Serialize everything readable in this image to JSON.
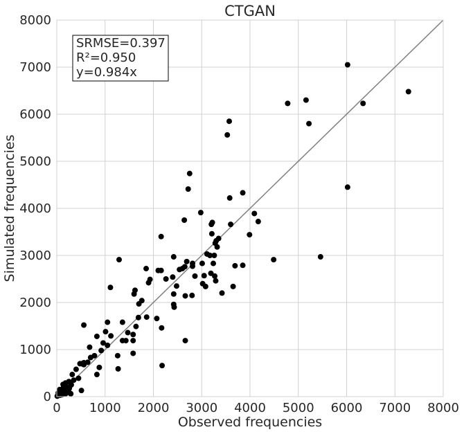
{
  "chart_data": {
    "type": "scatter",
    "title": "CTGAN",
    "xlabel": "Observed frequencies",
    "ylabel": "Simulated frequencies",
    "xlim": [
      0,
      8000
    ],
    "ylim": [
      0,
      8000
    ],
    "xticks": [
      "0",
      "1000",
      "2000",
      "3000",
      "4000",
      "5000",
      "6000",
      "7000",
      "8000"
    ],
    "yticks": [
      "0",
      "1000",
      "2000",
      "3000",
      "4000",
      "5000",
      "6000",
      "7000",
      "8000"
    ],
    "grid": true,
    "reference_line": {
      "slope": 1.0
    },
    "annotation": {
      "lines": [
        "SRMSE=0.397",
        "R²=0.950",
        "y=0.984x"
      ],
      "placement": "top-left"
    },
    "point_color": "#000000",
    "line_color": "#808080",
    "grid_color": "#d0d0d0",
    "points": [
      [
        6020,
        7050
      ],
      [
        7280,
        6480
      ],
      [
        4780,
        6230
      ],
      [
        5160,
        6300
      ],
      [
        5220,
        5800
      ],
      [
        6340,
        6230
      ],
      [
        3570,
        5850
      ],
      [
        3530,
        5560
      ],
      [
        6020,
        4450
      ],
      [
        5460,
        2970
      ],
      [
        4490,
        2910
      ],
      [
        2750,
        4740
      ],
      [
        2720,
        4410
      ],
      [
        3580,
        4220
      ],
      [
        3850,
        4330
      ],
      [
        4090,
        3890
      ],
      [
        4170,
        3720
      ],
      [
        2980,
        3910
      ],
      [
        2640,
        3750
      ],
      [
        3600,
        3660
      ],
      [
        3990,
        3440
      ],
      [
        3220,
        3700
      ],
      [
        3200,
        3660
      ],
      [
        3210,
        3460
      ],
      [
        3300,
        3310
      ],
      [
        3350,
        3360
      ],
      [
        3280,
        3260
      ],
      [
        3320,
        3180
      ],
      [
        3110,
        3030
      ],
      [
        3170,
        3000
      ],
      [
        3260,
        3000
      ],
      [
        3010,
        2830
      ],
      [
        3240,
        2830
      ],
      [
        3190,
        2620
      ],
      [
        3050,
        2570
      ],
      [
        3270,
        2560
      ],
      [
        3290,
        2460
      ],
      [
        3020,
        2400
      ],
      [
        3080,
        2340
      ],
      [
        3420,
        2200
      ],
      [
        3690,
        2780
      ],
      [
        3850,
        2790
      ],
      [
        3650,
        2340
      ],
      [
        2160,
        3400
      ],
      [
        2420,
        2970
      ],
      [
        1290,
        2910
      ],
      [
        2690,
        2870
      ],
      [
        2810,
        2830
      ],
      [
        2650,
        2760
      ],
      [
        2600,
        2720
      ],
      [
        2540,
        2700
      ],
      [
        2810,
        2770
      ],
      [
        2860,
        2560
      ],
      [
        1850,
        2720
      ],
      [
        2100,
        2680
      ],
      [
        2160,
        2680
      ],
      [
        1930,
        2490
      ],
      [
        1900,
        2420
      ],
      [
        2260,
        2500
      ],
      [
        2400,
        2540
      ],
      [
        2480,
        2350
      ],
      [
        2420,
        2180
      ],
      [
        2660,
        2140
      ],
      [
        2800,
        2150
      ],
      [
        1620,
        2260
      ],
      [
        1600,
        2180
      ],
      [
        1760,
        2040
      ],
      [
        1700,
        1970
      ],
      [
        2420,
        1960
      ],
      [
        2430,
        1900
      ],
      [
        1110,
        2320
      ],
      [
        1690,
        1680
      ],
      [
        1860,
        1690
      ],
      [
        2070,
        1660
      ],
      [
        1640,
        1490
      ],
      [
        2170,
        1460
      ],
      [
        1470,
        1360
      ],
      [
        1360,
        1580
      ],
      [
        1050,
        1580
      ],
      [
        560,
        1520
      ],
      [
        1580,
        1320
      ],
      [
        1360,
        1190
      ],
      [
        1430,
        1190
      ],
      [
        1580,
        1190
      ],
      [
        2660,
        1190
      ],
      [
        1120,
        1290
      ],
      [
        1010,
        1380
      ],
      [
        960,
        1140
      ],
      [
        1050,
        1090
      ],
      [
        830,
        1280
      ],
      [
        680,
        1050
      ],
      [
        920,
        980
      ],
      [
        780,
        870
      ],
      [
        1260,
        870
      ],
      [
        1580,
        920
      ],
      [
        700,
        830
      ],
      [
        640,
        730
      ],
      [
        560,
        720
      ],
      [
        480,
        700
      ],
      [
        520,
        700
      ],
      [
        560,
        680
      ],
      [
        2180,
        660
      ],
      [
        880,
        620
      ],
      [
        1270,
        590
      ],
      [
        400,
        580
      ],
      [
        320,
        470
      ],
      [
        830,
        470
      ],
      [
        450,
        390
      ],
      [
        350,
        350
      ],
      [
        250,
        320
      ],
      [
        180,
        290
      ],
      [
        130,
        260
      ],
      [
        300,
        250
      ],
      [
        240,
        200
      ],
      [
        200,
        180
      ],
      [
        150,
        150
      ],
      [
        100,
        120
      ],
      [
        80,
        90
      ],
      [
        120,
        70
      ],
      [
        60,
        60
      ],
      [
        40,
        40
      ],
      [
        20,
        20
      ],
      [
        30,
        80
      ],
      [
        70,
        30
      ],
      [
        90,
        140
      ],
      [
        160,
        100
      ],
      [
        210,
        110
      ],
      [
        110,
        40
      ],
      [
        50,
        110
      ],
      [
        180,
        60
      ],
      [
        140,
        200
      ],
      [
        240,
        120
      ],
      [
        280,
        70
      ],
      [
        510,
        130
      ],
      [
        290,
        60
      ],
      [
        10,
        10
      ],
      [
        60,
        150
      ],
      [
        190,
        220
      ],
      [
        260,
        180
      ]
    ]
  }
}
